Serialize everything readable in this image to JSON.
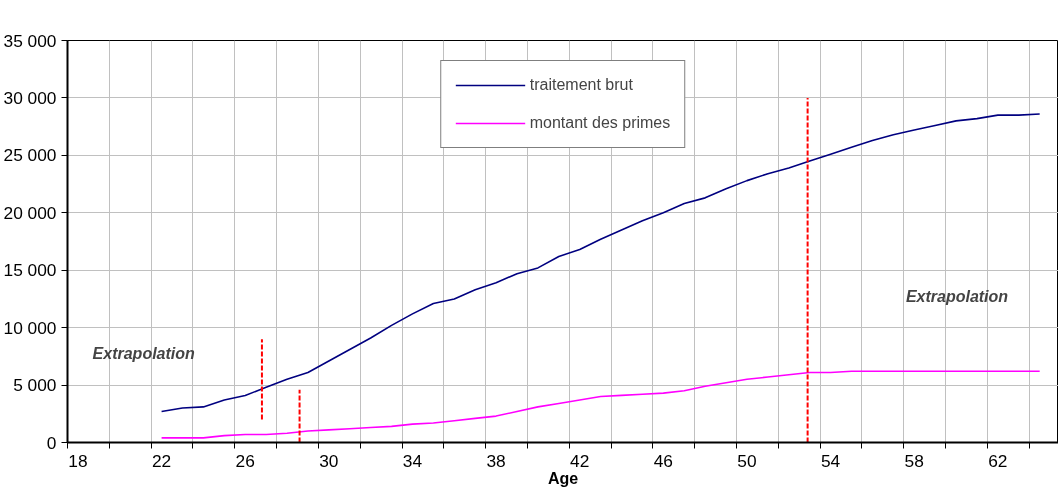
{
  "chart_data": {
    "type": "line",
    "xlabel": "Age",
    "legend": "top",
    "grid": true,
    "line_style": "solid",
    "marker": "none",
    "xlim": [
      17.5,
      64.9
    ],
    "ylim": [
      0,
      35000
    ],
    "xticks": [
      {
        "value": 18,
        "label": "18"
      },
      {
        "value": 22,
        "label": "22"
      },
      {
        "value": 26,
        "label": "26"
      },
      {
        "value": 30,
        "label": "30"
      },
      {
        "value": 34,
        "label": "34"
      },
      {
        "value": 38,
        "label": "38"
      },
      {
        "value": 42,
        "label": "42"
      },
      {
        "value": 46,
        "label": "46"
      },
      {
        "value": 50,
        "label": "50"
      },
      {
        "value": 54,
        "label": "54"
      },
      {
        "value": 58,
        "label": "58"
      },
      {
        "value": 62,
        "label": "62"
      },
      {
        "value": 17.5,
        "label": null
      },
      {
        "value": 19.5,
        "label": null
      },
      {
        "value": 21.5,
        "label": null
      },
      {
        "value": 23.5,
        "label": null
      },
      {
        "value": 25.5,
        "label": null
      },
      {
        "value": 27.5,
        "label": null
      },
      {
        "value": 29.5,
        "label": null
      },
      {
        "value": 31.5,
        "label": null
      },
      {
        "value": 33.5,
        "label": null
      },
      {
        "value": 35.5,
        "label": null
      },
      {
        "value": 37.5,
        "label": null
      },
      {
        "value": 39.5,
        "label": null
      },
      {
        "value": 41.5,
        "label": null
      },
      {
        "value": 43.5,
        "label": null
      },
      {
        "value": 45.5,
        "label": null
      },
      {
        "value": 47.5,
        "label": null
      },
      {
        "value": 49.5,
        "label": null
      },
      {
        "value": 51.5,
        "label": null
      },
      {
        "value": 53.5,
        "label": null
      },
      {
        "value": 55.5,
        "label": null
      },
      {
        "value": 57.5,
        "label": null
      },
      {
        "value": 59.5,
        "label": null
      },
      {
        "value": 61.5,
        "label": null
      },
      {
        "value": 63.5,
        "label": null
      }
    ],
    "yticks": [
      0,
      {
        "value": 5000,
        "label": "5 000"
      },
      {
        "value": 10000,
        "label": "10 000"
      },
      {
        "value": 15000,
        "label": "15 000"
      },
      {
        "value": 20000,
        "label": "20 000"
      },
      {
        "value": 25000,
        "label": "25 000"
      },
      {
        "value": 30000,
        "label": "30 000"
      },
      {
        "value": 35000,
        "label": "35 000"
      }
    ],
    "annotations": [
      "Extrapolation",
      "Extrapolation"
    ],
    "x": [
      22,
      23,
      24,
      25,
      26,
      27,
      28,
      29,
      30,
      31,
      32,
      33,
      34,
      35,
      36,
      37,
      38,
      39,
      40,
      41,
      42,
      43,
      44,
      45,
      46,
      47,
      48,
      49,
      50,
      51,
      52,
      53,
      54,
      55,
      56,
      57,
      58,
      59,
      60,
      61,
      62,
      63,
      64
    ],
    "series": [
      {
        "name": "traitement brut",
        "color": "#000080",
        "values": [
          2700,
          3000,
          3100,
          3700,
          4100,
          4800,
          5500,
          6100,
          7100,
          8100,
          9100,
          10200,
          11200,
          12100,
          12500,
          13300,
          13900,
          14700,
          15200,
          16200,
          16800,
          17700,
          18500,
          19300,
          20000,
          20800,
          21300,
          22100,
          22800,
          23400,
          23900,
          24500,
          25100,
          25700,
          26300,
          26800,
          27200,
          27600,
          28000,
          28200,
          28500,
          28500,
          28600
        ]
      },
      {
        "name": "montant des primes",
        "color": "#ff00ff",
        "values": [
          400,
          400,
          400,
          600,
          700,
          700,
          800,
          1000,
          1100,
          1200,
          1300,
          1400,
          1600,
          1700,
          1900,
          2100,
          2300,
          2700,
          3100,
          3400,
          3700,
          4000,
          4100,
          4200,
          4300,
          4500,
          4900,
          5200,
          5500,
          5700,
          5900,
          6100,
          6100,
          6200,
          6200,
          6200,
          6200,
          6200,
          6200,
          6200,
          6200,
          6200,
          6200
        ]
      },
      {
        "type": "line",
        "color": "#ff0000",
        "line_style": "dashed",
        "x": [
          26.8,
          26.8
        ],
        "values": [
          2000,
          9000
        ]
      },
      {
        "type": "line",
        "color": "#ff0000",
        "line_style": "dashed",
        "x": [
          28.6,
          28.6
        ],
        "values": [
          0,
          4600
        ]
      },
      {
        "type": "line",
        "color": "#ff0000",
        "line_style": "dashed",
        "x": [
          52.9,
          52.9
        ],
        "values": [
          0,
          30000
        ]
      }
    ]
  }
}
